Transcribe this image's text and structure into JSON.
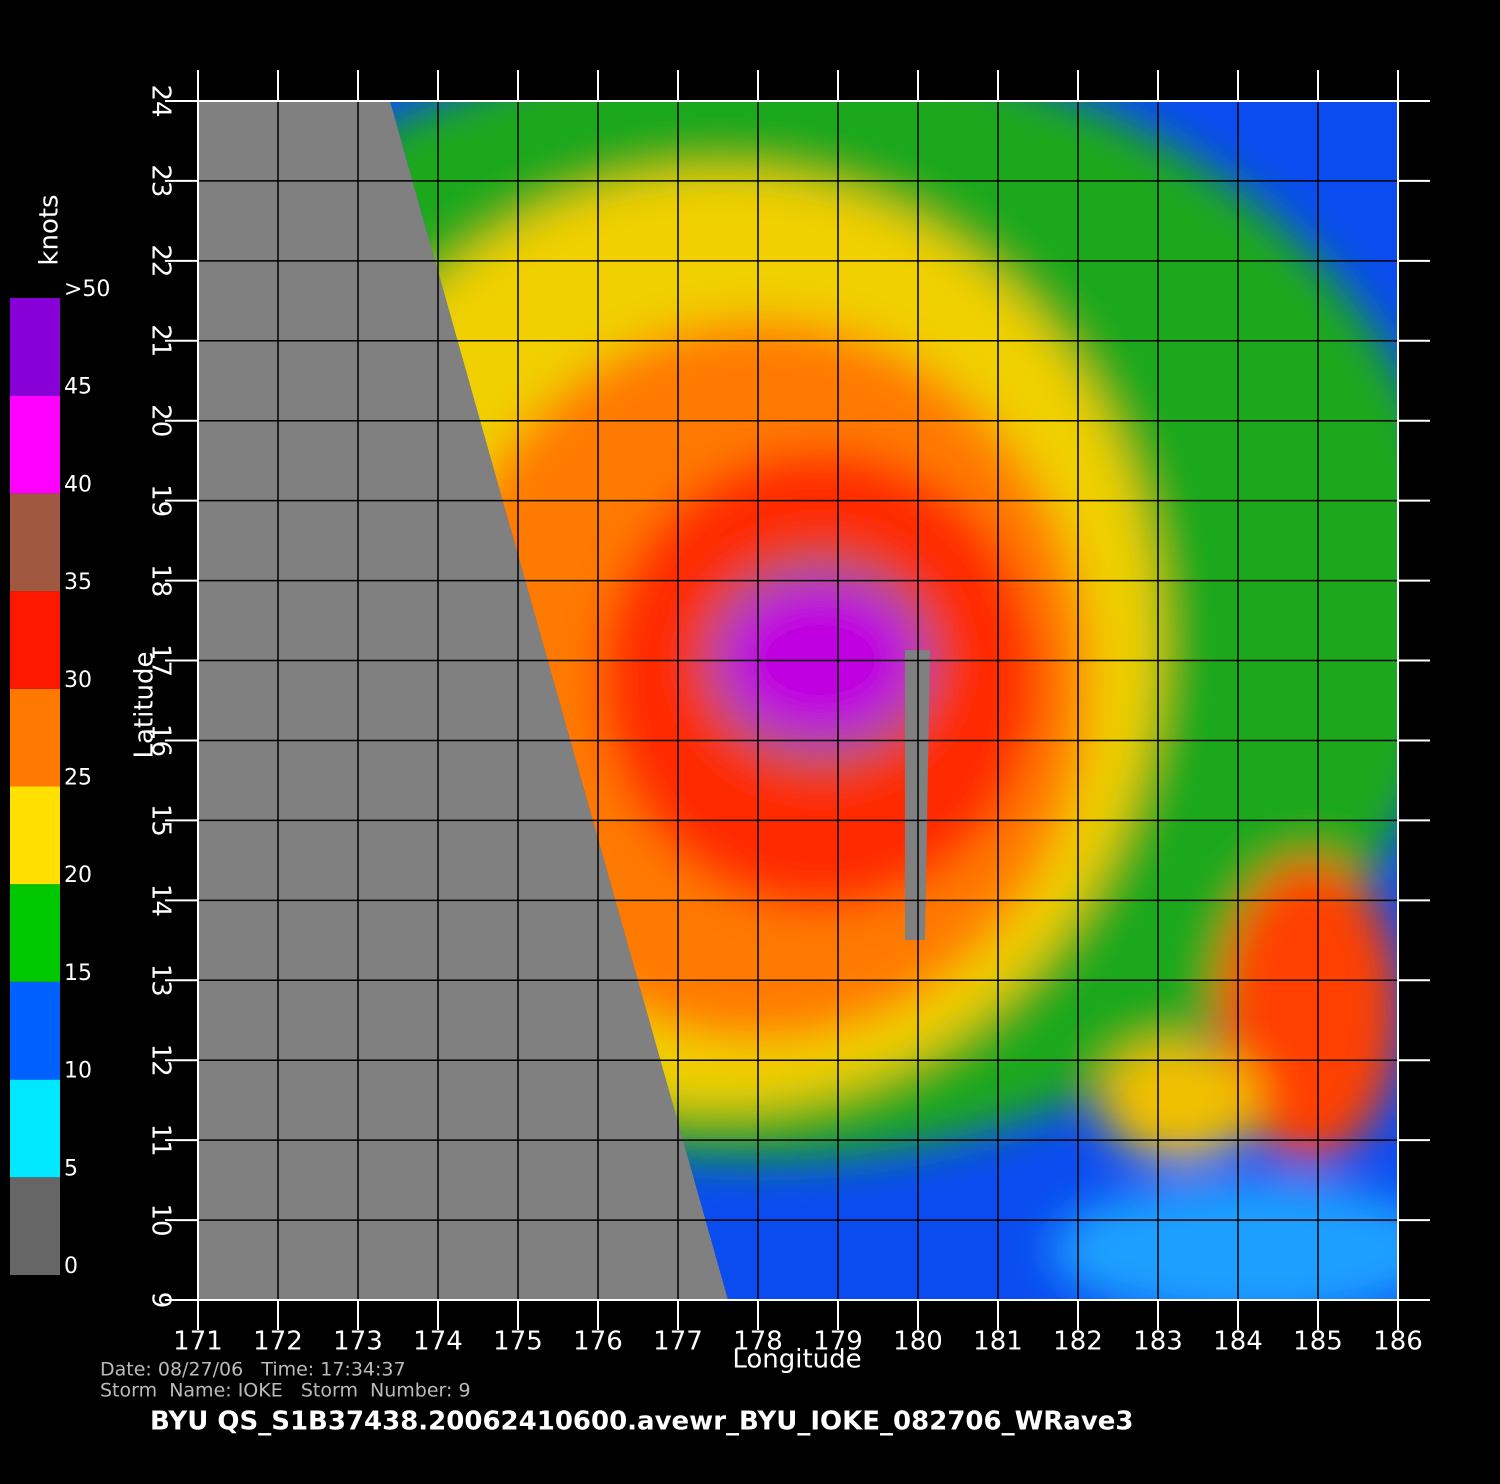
{
  "map": {
    "xlabel": "Longitude",
    "ylabel": "Latitude",
    "xlim": [
      171,
      186
    ],
    "ylim": [
      9,
      24
    ],
    "xticks": [
      171,
      172,
      173,
      174,
      175,
      176,
      177,
      178,
      179,
      180,
      181,
      182,
      183,
      184,
      185,
      186
    ],
    "yticks": [
      9,
      10,
      11,
      12,
      13,
      14,
      15,
      16,
      17,
      18,
      19,
      20,
      21,
      22,
      23,
      24
    ],
    "grid": true
  },
  "colorbar": {
    "label": "knots",
    "range": [
      0,
      50
    ],
    "ticks": [
      0,
      5,
      10,
      15,
      20,
      25,
      30,
      35,
      40,
      45,
      {
        "value": 50,
        "label": ">50"
      }
    ],
    "colors": [
      "#666666",
      "#00e8ff",
      "#0060ff",
      "#00c800",
      "#ffe000",
      "#ff7800",
      "#ff1800",
      "#a05840",
      "#ff00ff",
      "#8800d8"
    ]
  },
  "footer": {
    "date_line": "Date: 08/27/06   Time: 17:34:37",
    "storm_line": "Storm  Name: IOKE   Storm  Number: 9",
    "title": "BYU  QS_S1B37438.20062410600.avewr_BYU_IOKE_082706_WRave3"
  }
}
